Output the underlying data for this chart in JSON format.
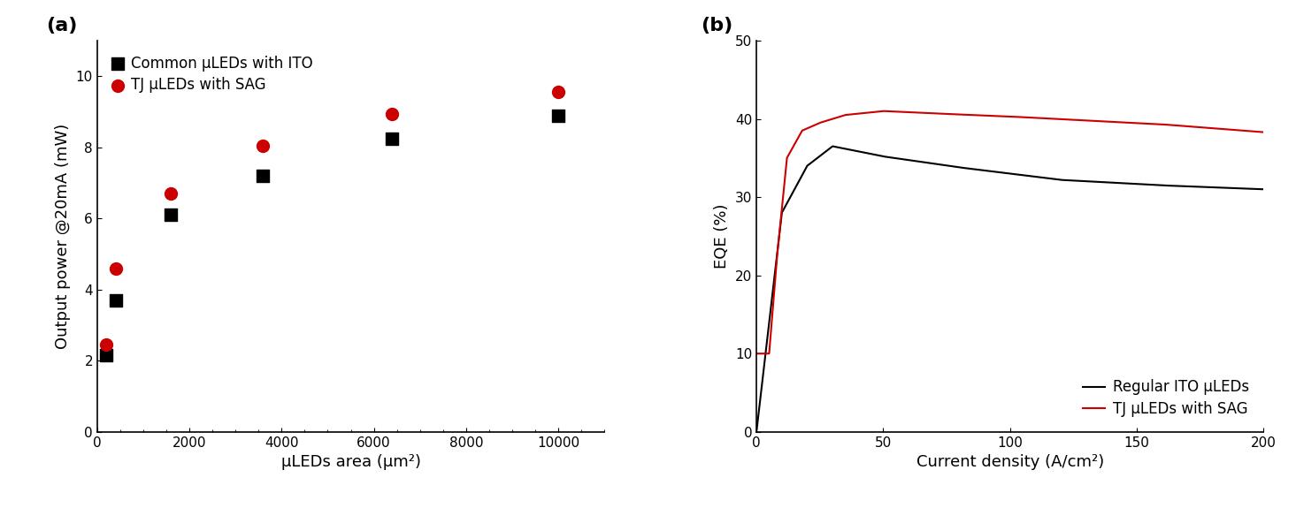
{
  "panel_a": {
    "label": "(a)",
    "ito_x": [
      200,
      400,
      1600,
      3600,
      6400,
      10000
    ],
    "ito_y": [
      2.15,
      3.7,
      6.1,
      7.2,
      8.25,
      8.9
    ],
    "sag_x": [
      200,
      400,
      1600,
      3600,
      6400,
      10000
    ],
    "sag_y": [
      2.45,
      4.6,
      6.7,
      8.05,
      8.95,
      9.55
    ],
    "xlabel": "μLEDs area (μm²)",
    "ylabel": "Output power @20mA (mW)",
    "xlim": [
      0,
      11000
    ],
    "ylim": [
      0,
      11
    ],
    "xticks": [
      0,
      2000,
      4000,
      6000,
      8000,
      10000
    ],
    "yticks": [
      0,
      2,
      4,
      6,
      8,
      10
    ],
    "legend_ito": "Common μLEDs with ITO",
    "legend_sag": "TJ μLEDs with SAG",
    "ito_color": "#000000",
    "sag_color": "#cc0000",
    "marker_ito": "s",
    "marker_sag": "o",
    "marker_size": 100
  },
  "panel_b": {
    "label": "(b)",
    "xlabel": "Current density (A/cm²)",
    "ylabel": "EQE (%)",
    "xlim": [
      0,
      200
    ],
    "ylim": [
      0,
      50
    ],
    "xticks": [
      0,
      50,
      100,
      150,
      200
    ],
    "yticks": [
      0,
      10,
      20,
      30,
      40,
      50
    ],
    "legend_ito": "Regular ITO μLEDs",
    "legend_sag": "TJ μLEDs with SAG",
    "ito_color": "#000000",
    "sag_color": "#cc0000",
    "line_width": 1.5
  },
  "background_color": "#ffffff",
  "font_size": 12,
  "label_font_size": 13,
  "tick_font_size": 11
}
